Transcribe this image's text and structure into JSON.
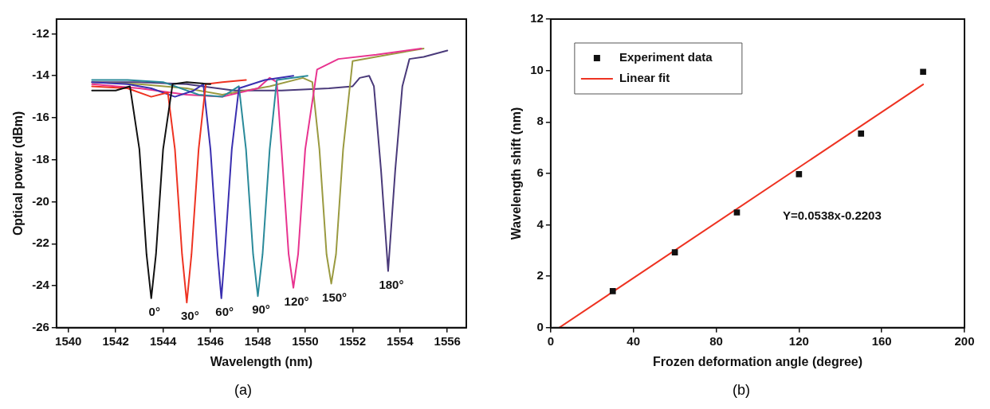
{
  "chart_data": [
    {
      "type": "line",
      "xlabel": "Wavelength (nm)",
      "ylabel": "Optical power (dBm)",
      "xlim": [
        1539.5,
        1556.8
      ],
      "ylim": [
        -26,
        -11.3
      ],
      "xticks": [
        1540,
        1542,
        1544,
        1546,
        1548,
        1550,
        1552,
        1554,
        1556
      ],
      "yticks": [
        -26,
        -24,
        -22,
        -20,
        -18,
        -16,
        -14,
        -12
      ],
      "grid": false,
      "legend": false,
      "marker": "none",
      "line_style": "solid",
      "series": [
        {
          "color": "#111111",
          "x": [
            1541,
            1542,
            1542.6,
            1543.0,
            1543.3,
            1543.5,
            1543.7,
            1544.0,
            1544.4,
            1545,
            1546
          ],
          "values": [
            -14.7,
            -14.7,
            -14.5,
            -17.5,
            -22.5,
            -24.6,
            -22.5,
            -17.5,
            -14.4,
            -14.3,
            -14.4
          ]
        },
        {
          "color": "#ee3322",
          "x": [
            1541,
            1542.5,
            1543.5,
            1544.2,
            1544.5,
            1544.8,
            1545.0,
            1545.2,
            1545.5,
            1545.8,
            1546.5,
            1547.5
          ],
          "values": [
            -14.5,
            -14.6,
            -15.0,
            -14.8,
            -17.5,
            -22.5,
            -24.8,
            -22.5,
            -17.5,
            -14.4,
            -14.3,
            -14.2
          ]
        },
        {
          "color": "#3a2fb0",
          "x": [
            1541,
            1542.5,
            1543.5,
            1544.5,
            1545.3,
            1545.7,
            1546.0,
            1546.3,
            1546.46,
            1546.6,
            1546.9,
            1547.2,
            1548.3,
            1549.5
          ],
          "values": [
            -14.3,
            -14.4,
            -14.6,
            -15.0,
            -14.7,
            -14.4,
            -17.5,
            -22.5,
            -24.6,
            -22.5,
            -17.5,
            -14.6,
            -14.2,
            -14.0
          ]
        },
        {
          "color": "#2a8a9a",
          "x": [
            1541,
            1542.5,
            1544,
            1545.5,
            1546.5,
            1547.2,
            1547.5,
            1547.8,
            1548.0,
            1548.2,
            1548.5,
            1548.8,
            1550.1
          ],
          "values": [
            -14.2,
            -14.2,
            -14.3,
            -14.9,
            -15.0,
            -14.5,
            -17.5,
            -22.5,
            -24.5,
            -22.5,
            -17.5,
            -14.2,
            -14.0
          ]
        },
        {
          "color": "#e8338f",
          "x": [
            1541,
            1543,
            1545,
            1546.5,
            1548,
            1548.5,
            1548.8,
            1549.0,
            1549.3,
            1549.5,
            1549.7,
            1550.0,
            1550.5,
            1551.4,
            1553,
            1554.9
          ],
          "values": [
            -14.4,
            -14.6,
            -14.9,
            -15.0,
            -14.6,
            -14.1,
            -14.3,
            -17.5,
            -22.5,
            -24.1,
            -22.5,
            -17.5,
            -13.7,
            -13.2,
            -13.0,
            -12.7
          ]
        },
        {
          "color": "#9a9a40",
          "x": [
            1541,
            1543,
            1545,
            1546.5,
            1548.5,
            1549.9,
            1550.3,
            1550.6,
            1550.9,
            1551.1,
            1551.3,
            1551.6,
            1552.0,
            1553.5,
            1555
          ],
          "values": [
            -14.3,
            -14.4,
            -14.6,
            -14.9,
            -14.5,
            -14.1,
            -14.3,
            -17.5,
            -22.5,
            -23.9,
            -22.5,
            -17.5,
            -13.3,
            -13.0,
            -12.7
          ]
        },
        {
          "color": "#4a3a7a",
          "x": [
            1541,
            1543,
            1545,
            1547,
            1549,
            1551,
            1552.0,
            1552.3,
            1552.7,
            1552.9,
            1553.2,
            1553.5,
            1553.8,
            1554.1,
            1554.4,
            1555,
            1556
          ],
          "values": [
            -14.3,
            -14.3,
            -14.4,
            -14.7,
            -14.7,
            -14.6,
            -14.5,
            -14.1,
            -14.0,
            -14.5,
            -18.5,
            -23.3,
            -18.5,
            -14.5,
            -13.2,
            -13.1,
            -12.8
          ]
        }
      ],
      "annotations": [
        "0°",
        "30°",
        "60°",
        "90°",
        "120°",
        "150°",
        "180°",
        "(a)"
      ]
    },
    {
      "type": "scatter",
      "xlabel": "Frozen deformation angle (degree)",
      "ylabel": "Wavelength shift (nm)",
      "xlim": [
        0,
        200
      ],
      "ylim": [
        0,
        12
      ],
      "xticks": [
        0,
        40,
        80,
        120,
        160,
        200
      ],
      "yticks": [
        0,
        2,
        4,
        6,
        8,
        10,
        12
      ],
      "grid": false,
      "legend": "top left",
      "marker": "square",
      "series": [
        {
          "name": "Experiment data",
          "type": "scatter",
          "color": "#111111",
          "x": [
            30,
            60,
            90,
            120,
            150,
            180
          ],
          "values": [
            1.42,
            2.93,
            4.48,
            5.97,
            7.55,
            9.95
          ]
        },
        {
          "name": "Linear fit",
          "type": "line",
          "marker": "none",
          "color": "#ee3322",
          "x": [
            4.1,
            180
          ],
          "values": [
            0,
            9.46
          ]
        }
      ],
      "annotations": [
        "Y=0.0538x-0.2203",
        "(b)"
      ]
    }
  ]
}
